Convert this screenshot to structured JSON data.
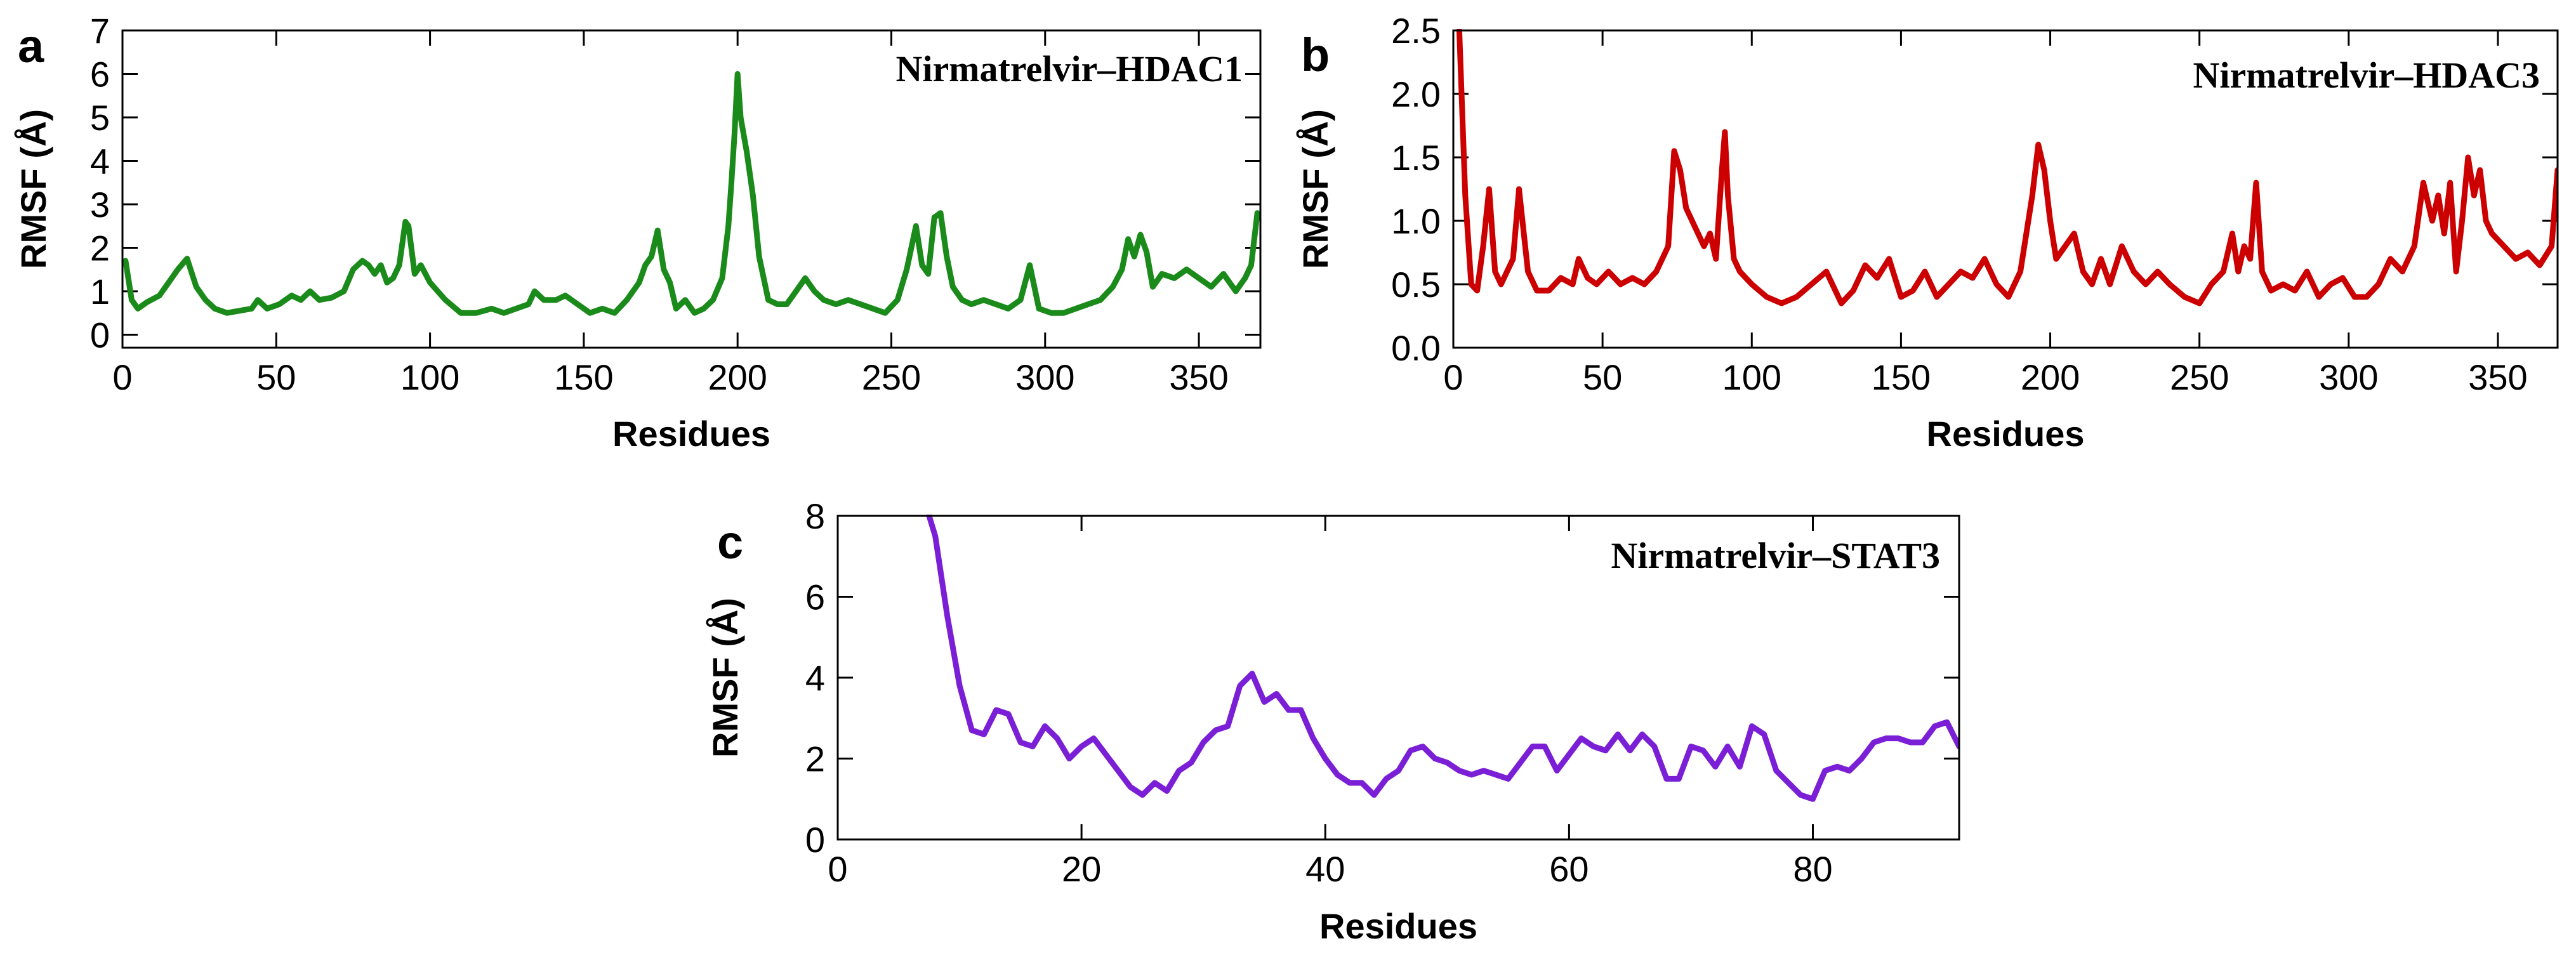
{
  "chart_data": [
    {
      "panel": "a",
      "type": "line",
      "title": "Nirmatrelvir–HDAC1",
      "xlabel": "Residues",
      "ylabel": "RMSF (Å)",
      "xlim": [
        0,
        370
      ],
      "ylim": [
        -0.3,
        7
      ],
      "xticks": [
        0,
        50,
        100,
        150,
        200,
        250,
        300,
        350
      ],
      "yticks": [
        0,
        1,
        2,
        3,
        4,
        5,
        6,
        7
      ],
      "color": "#1a8a1a",
      "x": [
        1,
        3,
        5,
        8,
        12,
        15,
        18,
        21,
        24,
        27,
        30,
        34,
        38,
        42,
        44,
        47,
        51,
        55,
        58,
        61,
        64,
        68,
        72,
        75,
        78,
        80,
        82,
        84,
        86,
        88,
        90,
        92,
        93,
        95,
        97,
        100,
        105,
        110,
        115,
        120,
        124,
        128,
        132,
        134,
        137,
        141,
        144,
        148,
        152,
        156,
        160,
        164,
        168,
        170,
        172,
        174,
        176,
        178,
        180,
        183,
        186,
        189,
        192,
        195,
        197,
        198,
        199,
        200,
        201,
        203,
        205,
        207,
        210,
        213,
        216,
        219,
        222,
        225,
        228,
        232,
        236,
        240,
        244,
        248,
        252,
        255,
        258,
        260,
        262,
        264,
        266,
        268,
        270,
        273,
        276,
        280,
        284,
        288,
        292,
        295,
        298,
        302,
        306,
        310,
        314,
        318,
        322,
        325,
        327,
        329,
        331,
        333,
        335,
        338,
        342,
        346,
        350,
        354,
        358,
        362,
        365,
        367,
        369
      ],
      "values": [
        1.7,
        0.8,
        0.6,
        0.75,
        0.9,
        1.2,
        1.5,
        1.75,
        1.1,
        0.8,
        0.6,
        0.5,
        0.55,
        0.6,
        0.8,
        0.6,
        0.7,
        0.9,
        0.8,
        1.0,
        0.8,
        0.85,
        1.0,
        1.5,
        1.7,
        1.6,
        1.4,
        1.6,
        1.2,
        1.3,
        1.6,
        2.6,
        2.5,
        1.4,
        1.6,
        1.2,
        0.8,
        0.5,
        0.5,
        0.6,
        0.5,
        0.6,
        0.7,
        1.0,
        0.8,
        0.8,
        0.9,
        0.7,
        0.5,
        0.6,
        0.5,
        0.8,
        1.2,
        1.6,
        1.8,
        2.4,
        1.5,
        1.2,
        0.6,
        0.8,
        0.5,
        0.6,
        0.8,
        1.3,
        2.5,
        3.5,
        4.6,
        6.0,
        5.0,
        4.2,
        3.2,
        1.8,
        0.8,
        0.7,
        0.7,
        1.0,
        1.3,
        1.0,
        0.8,
        0.7,
        0.8,
        0.7,
        0.6,
        0.5,
        0.8,
        1.5,
        2.5,
        1.6,
        1.4,
        2.7,
        2.8,
        1.8,
        1.1,
        0.8,
        0.7,
        0.8,
        0.7,
        0.6,
        0.8,
        1.6,
        0.6,
        0.5,
        0.5,
        0.6,
        0.7,
        0.8,
        1.1,
        1.5,
        2.2,
        1.8,
        2.3,
        1.9,
        1.1,
        1.4,
        1.3,
        1.5,
        1.3,
        1.1,
        1.4,
        1.0,
        1.3,
        1.6,
        2.8
      ]
    },
    {
      "panel": "b",
      "type": "line",
      "title": "Nirmatrelvir–HDAC3",
      "xlabel": "Residues",
      "ylabel": "RMSF (Å)",
      "xlim": [
        0,
        370
      ],
      "ylim": [
        0,
        2.5
      ],
      "xticks": [
        0,
        50,
        100,
        150,
        200,
        250,
        300,
        350
      ],
      "yticks": [
        0.0,
        0.5,
        1.0,
        1.5,
        2.0,
        2.5
      ],
      "ytick_labels": [
        "0.0",
        "0.5",
        "1.0",
        "1.5",
        "2.0",
        "2.5"
      ],
      "color": "#cc0000",
      "x": [
        2,
        4,
        6,
        8,
        10,
        12,
        14,
        16,
        18,
        20,
        22,
        25,
        28,
        32,
        36,
        40,
        42,
        45,
        48,
        52,
        56,
        60,
        64,
        68,
        72,
        74,
        76,
        78,
        80,
        82,
        84,
        86,
        88,
        90,
        91,
        92,
        94,
        96,
        100,
        105,
        110,
        115,
        120,
        125,
        130,
        134,
        138,
        142,
        146,
        150,
        154,
        158,
        162,
        166,
        170,
        174,
        178,
        182,
        186,
        190,
        194,
        196,
        198,
        200,
        202,
        205,
        208,
        211,
        214,
        217,
        220,
        224,
        228,
        232,
        236,
        240,
        245,
        250,
        254,
        258,
        261,
        263,
        265,
        267,
        269,
        271,
        274,
        278,
        282,
        286,
        290,
        294,
        298,
        302,
        306,
        310,
        314,
        318,
        322,
        325,
        328,
        330,
        332,
        334,
        336,
        338,
        340,
        342,
        344,
        346,
        348,
        352,
        356,
        360,
        364,
        368,
        370
      ],
      "values": [
        2.5,
        1.2,
        0.5,
        0.45,
        0.8,
        1.25,
        0.6,
        0.5,
        0.6,
        0.7,
        1.25,
        0.6,
        0.45,
        0.45,
        0.55,
        0.5,
        0.7,
        0.55,
        0.5,
        0.6,
        0.5,
        0.55,
        0.5,
        0.6,
        0.8,
        1.55,
        1.4,
        1.1,
        1.0,
        0.9,
        0.8,
        0.9,
        0.7,
        1.4,
        1.7,
        1.2,
        0.7,
        0.6,
        0.5,
        0.4,
        0.35,
        0.4,
        0.5,
        0.6,
        0.35,
        0.45,
        0.65,
        0.55,
        0.7,
        0.4,
        0.45,
        0.6,
        0.4,
        0.5,
        0.6,
        0.55,
        0.7,
        0.5,
        0.4,
        0.6,
        1.2,
        1.6,
        1.4,
        1.0,
        0.7,
        0.8,
        0.9,
        0.6,
        0.5,
        0.7,
        0.5,
        0.8,
        0.6,
        0.5,
        0.6,
        0.5,
        0.4,
        0.35,
        0.5,
        0.6,
        0.9,
        0.6,
        0.8,
        0.7,
        1.3,
        0.6,
        0.45,
        0.5,
        0.45,
        0.6,
        0.4,
        0.5,
        0.55,
        0.4,
        0.4,
        0.5,
        0.7,
        0.6,
        0.8,
        1.3,
        1.0,
        1.2,
        0.9,
        1.3,
        0.6,
        1.0,
        1.5,
        1.2,
        1.4,
        1.0,
        0.9,
        0.8,
        0.7,
        0.75,
        0.65,
        0.8,
        1.4
      ]
    },
    {
      "panel": "c",
      "type": "line",
      "title": "Nirmatrelvir–STAT3",
      "xlabel": "Residues",
      "ylabel": "RMSF (Å)",
      "xlim": [
        0,
        92
      ],
      "ylim": [
        0,
        8
      ],
      "xticks": [
        0,
        20,
        40,
        60,
        80
      ],
      "yticks": [
        0,
        2,
        4,
        6,
        8
      ],
      "color": "#7a1fd6",
      "x": [
        7.5,
        8,
        9,
        10,
        11,
        12,
        13,
        14,
        15,
        16,
        17,
        18,
        19,
        20,
        21,
        22,
        23,
        24,
        25,
        26,
        27,
        28,
        29,
        30,
        31,
        32,
        33,
        34,
        35,
        36,
        37,
        38,
        39,
        40,
        41,
        42,
        43,
        44,
        45,
        46,
        47,
        48,
        49,
        50,
        51,
        52,
        53,
        54,
        55,
        56,
        57,
        58,
        59,
        60,
        61,
        62,
        63,
        64,
        65,
        66,
        67,
        68,
        69,
        70,
        71,
        72,
        73,
        74,
        75,
        76,
        77,
        78,
        79,
        80,
        81,
        82,
        83,
        84,
        85,
        86,
        87,
        88,
        89,
        90,
        91,
        92
      ],
      "values": [
        8.0,
        7.5,
        5.5,
        3.8,
        2.7,
        2.6,
        3.2,
        3.1,
        2.4,
        2.3,
        2.8,
        2.5,
        2.0,
        2.3,
        2.5,
        2.1,
        1.7,
        1.3,
        1.1,
        1.4,
        1.2,
        1.7,
        1.9,
        2.4,
        2.7,
        2.8,
        3.8,
        4.1,
        3.4,
        3.6,
        3.2,
        3.2,
        2.5,
        2.0,
        1.6,
        1.4,
        1.4,
        1.1,
        1.5,
        1.7,
        2.2,
        2.3,
        2.0,
        1.9,
        1.7,
        1.6,
        1.7,
        1.6,
        1.5,
        1.9,
        2.3,
        2.3,
        1.7,
        2.1,
        2.5,
        2.3,
        2.2,
        2.6,
        2.2,
        2.6,
        2.3,
        1.5,
        1.5,
        2.3,
        2.2,
        1.8,
        2.3,
        1.8,
        2.8,
        2.6,
        1.7,
        1.4,
        1.1,
        1.0,
        1.7,
        1.8,
        1.7,
        2.0,
        2.4,
        2.5,
        2.5,
        2.4,
        2.4,
        2.8,
        2.9,
        2.3
      ]
    }
  ]
}
